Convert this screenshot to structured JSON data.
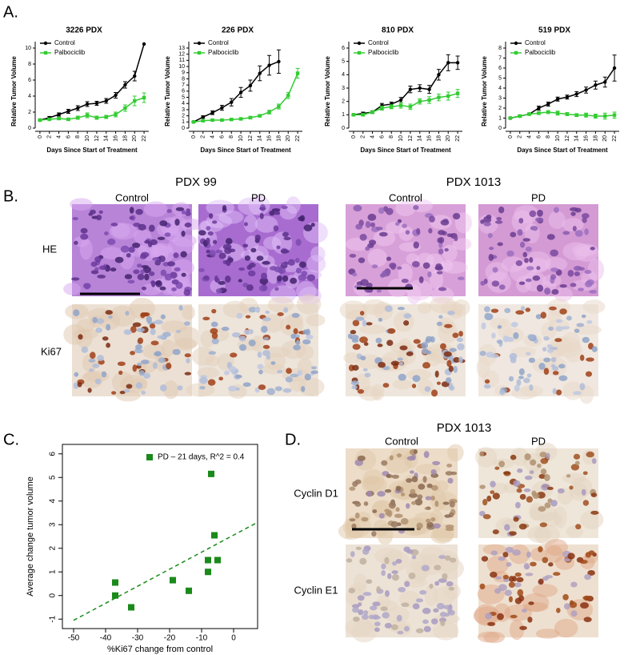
{
  "panel_a": {
    "label": "A."
  },
  "panel_c": {
    "label": "C."
  },
  "figure_b": {
    "label": "B.",
    "rows": [
      "HE",
      "Ki67"
    ],
    "groups": [
      {
        "title": "PDX 99",
        "columns": [
          "Control",
          "PD"
        ]
      },
      {
        "title": "PDX 1013",
        "columns": [
          "Control",
          "PD"
        ]
      }
    ]
  },
  "figure_d": {
    "label": "D.",
    "title": "PDX 1013",
    "columns": [
      "Control",
      "PD"
    ],
    "rows": [
      "Cyclin D1",
      "Cyclin E1"
    ]
  },
  "chart_data": [
    {
      "type": "line",
      "title": "3226 PDX",
      "x_label": "Days Since Start of Treatment",
      "y_label": "Relative Tumor Volume",
      "x": [
        0,
        2,
        4,
        6,
        8,
        10,
        12,
        14,
        16,
        18,
        20,
        22
      ],
      "xlim": [
        -1,
        23
      ],
      "xticks": [
        0,
        2,
        4,
        6,
        8,
        10,
        12,
        14,
        16,
        18,
        20,
        22
      ],
      "ylim": [
        0,
        10
      ],
      "yticks": [
        0,
        2,
        4,
        6,
        8,
        10
      ],
      "legend": "upper left",
      "series": [
        {
          "name": "Control",
          "color": "#000000",
          "marker": "circle",
          "values": [
            1,
            1.3,
            1.7,
            2.1,
            2.5,
            3.0,
            3.1,
            3.4,
            4.1,
            5.4,
            6.5,
            10.5
          ],
          "errors": [
            0.1,
            0.15,
            0.2,
            0.25,
            0.3,
            0.3,
            0.25,
            0.3,
            0.35,
            0.4,
            0.6,
            null
          ]
        },
        {
          "name": "Palbociclib",
          "color": "#33cc33",
          "marker": "square",
          "values": [
            1,
            1.1,
            1.2,
            1.1,
            1.3,
            1.6,
            1.3,
            1.4,
            1.7,
            2.5,
            3.4,
            3.8
          ],
          "errors": [
            0.1,
            0.1,
            0.15,
            0.15,
            0.2,
            0.3,
            0.2,
            0.2,
            0.3,
            0.4,
            0.6,
            0.6
          ]
        }
      ]
    },
    {
      "type": "line",
      "title": "226 PDX",
      "x_label": "Days Since Start of Treatment",
      "y_label": "Relative Tumor Volume",
      "x": [
        0,
        2,
        4,
        6,
        8,
        10,
        12,
        14,
        16,
        18,
        20,
        22
      ],
      "xlim": [
        -1,
        23
      ],
      "xticks": [
        0,
        2,
        4,
        6,
        8,
        10,
        12,
        14,
        16,
        18,
        20,
        22
      ],
      "ylim": [
        0,
        13
      ],
      "yticks": [
        0,
        1,
        2,
        3,
        4,
        5,
        6,
        7,
        8,
        9,
        10,
        11,
        12,
        13
      ],
      "legend": "upper left",
      "series": [
        {
          "name": "Control",
          "color": "#000000",
          "marker": "circle",
          "values": [
            1,
            1.8,
            2.5,
            3.3,
            4.2,
            5.8,
            6.9,
            8.9,
            10.2,
            10.8,
            null,
            null
          ],
          "errors": [
            0.1,
            0.2,
            0.3,
            0.4,
            0.6,
            0.8,
            0.9,
            1.2,
            1.6,
            1.9,
            null,
            null
          ]
        },
        {
          "name": "Palbociclib",
          "color": "#33cc33",
          "marker": "square",
          "values": [
            1,
            1.2,
            1.3,
            1.3,
            1.4,
            1.5,
            1.7,
            2.0,
            2.6,
            3.5,
            5.3,
            8.9
          ],
          "errors": [
            0.1,
            0.1,
            0.1,
            0.1,
            0.15,
            0.15,
            0.2,
            0.2,
            0.3,
            0.4,
            0.5,
            0.8
          ]
        }
      ]
    },
    {
      "type": "line",
      "title": "810 PDX",
      "x_label": "Days Since Start of Treatment",
      "y_label": "Relative Tumor Volume",
      "x": [
        0,
        2,
        4,
        6,
        8,
        10,
        12,
        14,
        16,
        18,
        20,
        22
      ],
      "xlim": [
        -1,
        23
      ],
      "xticks": [
        0,
        2,
        4,
        6,
        8,
        10,
        12,
        14,
        16,
        18,
        20,
        22
      ],
      "ylim": [
        0,
        6
      ],
      "yticks": [
        0,
        1,
        2,
        3,
        4,
        5,
        6
      ],
      "legend": "upper left",
      "series": [
        {
          "name": "Control",
          "color": "#000000",
          "marker": "circle",
          "values": [
            1,
            1.1,
            1.2,
            1.7,
            1.8,
            2.1,
            2.9,
            3.0,
            2.9,
            4.0,
            4.9,
            4.9
          ],
          "errors": [
            0.05,
            0.1,
            0.1,
            0.15,
            0.15,
            0.2,
            0.25,
            0.25,
            0.3,
            0.4,
            0.6,
            0.5
          ]
        },
        {
          "name": "Palbociclib",
          "color": "#33cc33",
          "marker": "square",
          "values": [
            1,
            1,
            1.2,
            1.5,
            1.6,
            1.7,
            1.6,
            2.0,
            2.1,
            2.3,
            2.4,
            2.6
          ],
          "errors": [
            0.05,
            0.1,
            0.1,
            0.15,
            0.15,
            0.2,
            0.2,
            0.2,
            0.25,
            0.25,
            0.3,
            0.3
          ]
        }
      ]
    },
    {
      "type": "line",
      "title": "519 PDX",
      "x_label": "Days Since Start of Treatment",
      "y_label": "Relative Tumor Volume",
      "x": [
        0,
        2,
        4,
        6,
        8,
        10,
        12,
        14,
        16,
        18,
        20,
        22
      ],
      "xlim": [
        -1,
        23
      ],
      "xticks": [
        0,
        2,
        4,
        6,
        8,
        10,
        12,
        14,
        16,
        18,
        20,
        22
      ],
      "ylim": [
        0,
        8
      ],
      "yticks": [
        0,
        1,
        2,
        3,
        4,
        5,
        6,
        7,
        8
      ],
      "legend": "upper left",
      "series": [
        {
          "name": "Control",
          "color": "#000000",
          "marker": "circle",
          "values": [
            1,
            1.2,
            1.4,
            2.0,
            2.4,
            2.9,
            3.1,
            3.4,
            3.8,
            4.3,
            4.6,
            6.0
          ],
          "errors": [
            0.05,
            0.1,
            0.1,
            0.2,
            0.2,
            0.2,
            0.2,
            0.25,
            0.3,
            0.4,
            0.5,
            1.3
          ]
        },
        {
          "name": "Palbociclib",
          "color": "#33cc33",
          "marker": "square",
          "values": [
            1,
            1.2,
            1.4,
            1.5,
            1.6,
            1.5,
            1.4,
            1.3,
            1.3,
            1.2,
            1.2,
            1.3
          ],
          "errors": [
            0.05,
            0.1,
            0.1,
            0.15,
            0.15,
            0.2,
            0.15,
            0.15,
            0.2,
            0.2,
            0.3,
            0.3
          ]
        }
      ]
    },
    {
      "type": "scatter",
      "x_label": "%Ki67 change from control",
      "y_label": "Average change tumor volume",
      "xlim": [
        -53.5,
        7.5
      ],
      "xticks": [
        -50,
        -40,
        -30,
        -20,
        -10,
        0
      ],
      "ylim": [
        -1.4,
        6.4
      ],
      "yticks": [
        -1,
        0,
        1,
        2,
        3,
        4,
        5,
        6
      ],
      "legend": "upper right",
      "series": [
        {
          "name": "PD – 21 days, R^2 = 0.4",
          "color": "#1a8a1a",
          "x": [
            -37,
            -37,
            -32,
            -19,
            -14,
            -8,
            -8,
            -5,
            -6,
            -7
          ],
          "values": [
            0.55,
            0,
            -0.5,
            0.65,
            0.2,
            1.5,
            1,
            1.5,
            2.55,
            5.15
          ]
        }
      ],
      "trendline": {
        "x": [
          -50,
          7.5
        ],
        "y": [
          -1.05,
          3.1
        ]
      }
    }
  ]
}
